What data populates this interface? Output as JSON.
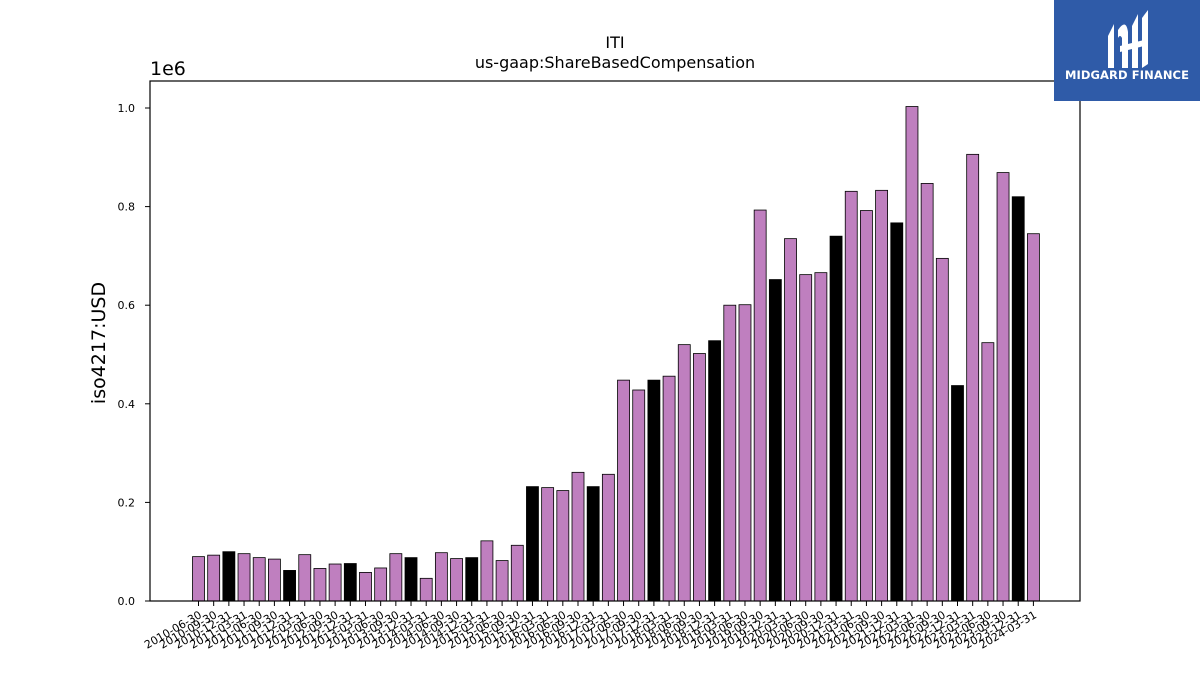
{
  "chart_data": {
    "type": "bar",
    "title": "ITI",
    "subtitle": "us-gaap:ShareBasedCompensation",
    "ylabel": "iso4217:USD",
    "xlabel": "",
    "y_offset_label": "1e6",
    "ylim": [
      0,
      1.05
    ],
    "yticks": [
      "0.0",
      "0.2",
      "0.4",
      "0.6",
      "0.8",
      "1.0"
    ],
    "grid": false,
    "categories": [
      "2010-06-30",
      "2010-09-30",
      "2010-12-31",
      "2011-03-31",
      "2011-06-30",
      "2011-09-30",
      "2011-12-31",
      "2012-03-31",
      "2012-06-30",
      "2012-09-30",
      "2012-12-31",
      "2013-03-31",
      "2013-06-30",
      "2013-09-30",
      "2013-12-31",
      "2014-03-31",
      "2014-06-30",
      "2014-09-30",
      "2014-12-31",
      "2015-03-31",
      "2015-06-30",
      "2015-09-30",
      "2015-12-31",
      "2016-03-31",
      "2016-06-30",
      "2016-09-30",
      "2016-12-31",
      "2017-03-31",
      "2017-06-30",
      "2017-09-30",
      "2017-12-31",
      "2018-03-31",
      "2018-06-30",
      "2018-09-30",
      "2018-12-31",
      "2019-03-31",
      "2019-06-30",
      "2019-09-30",
      "2019-12-31",
      "2020-03-31",
      "2020-06-30",
      "2020-09-30",
      "2020-12-31",
      "2021-03-31",
      "2021-06-30",
      "2021-09-30",
      "2021-12-31",
      "2022-03-31",
      "2022-06-30",
      "2022-09-30",
      "2022-12-31",
      "2023-03-31",
      "2023-06-30",
      "2023-09-30",
      "2023-12-31",
      "2024-03-31"
    ],
    "values": [
      0.09,
      0.093,
      0.1,
      0.096,
      0.088,
      0.085,
      0.062,
      0.094,
      0.066,
      0.075,
      0.076,
      0.058,
      0.067,
      0.096,
      0.088,
      0.046,
      0.098,
      0.086,
      0.088,
      0.122,
      0.082,
      0.113,
      0.232,
      0.23,
      0.224,
      0.261,
      0.232,
      0.257,
      0.448,
      0.428,
      0.448,
      0.456,
      0.52,
      0.502,
      0.528,
      0.6,
      0.601,
      0.793,
      0.652,
      0.735,
      0.662,
      0.666,
      0.74,
      0.831,
      0.792,
      0.833,
      0.767,
      1.003,
      0.847,
      0.695,
      0.437,
      0.906,
      0.524,
      0.869,
      0.82,
      0.745
    ],
    "highlighted": [
      false,
      false,
      true,
      false,
      false,
      false,
      true,
      false,
      false,
      false,
      true,
      false,
      false,
      false,
      true,
      false,
      false,
      false,
      true,
      false,
      false,
      false,
      true,
      false,
      false,
      false,
      true,
      false,
      false,
      false,
      true,
      false,
      false,
      false,
      true,
      false,
      false,
      false,
      true,
      false,
      false,
      false,
      true,
      false,
      false,
      false,
      true,
      false,
      false,
      false,
      true,
      false,
      false,
      false,
      true,
      false
    ],
    "colors": {
      "bar": "#bf7fbf",
      "highlight": "#000000",
      "edge": "#000000"
    }
  },
  "logo": {
    "text": "MIDGARD FINANCE",
    "color": "#2f5ba8"
  }
}
